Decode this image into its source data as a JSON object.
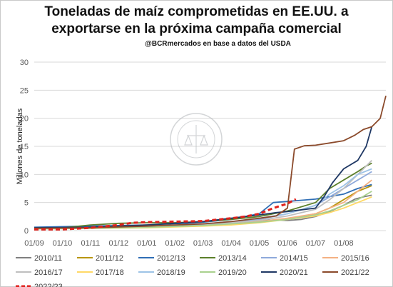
{
  "chart_data": {
    "type": "line",
    "title": "Toneladas de maíz comprometidas en EE.UU. a exportarse en la próxima campaña comercial",
    "title_line1": "Toneladas de maíz comprometidas en EE.UU. a",
    "title_line2": "exportarse en la próxima campaña comercial",
    "subtitle": "@BCRmercados en base a datos del USDA",
    "xlabel": "",
    "ylabel": "Millones de toneladas",
    "ylim": [
      0,
      30
    ],
    "yticks": [
      0,
      5,
      10,
      15,
      20,
      25,
      30
    ],
    "x_ticks": [
      "01/09",
      "01/10",
      "01/11",
      "01/12",
      "01/01",
      "01/02",
      "01/03",
      "01/04",
      "01/05",
      "01/06",
      "01/07",
      "01/08"
    ],
    "x_unit": "months since 01/09",
    "grid": true,
    "legend_position": "bottom",
    "watermark": "BOLSA DE COMERCIO DE ROSARIO",
    "series": [
      {
        "name": "2010/11",
        "color": "#7f7f7f",
        "dash": false,
        "points": [
          [
            0,
            0.4
          ],
          [
            2,
            0.5
          ],
          [
            4,
            0.7
          ],
          [
            6,
            1.0
          ],
          [
            7,
            1.3
          ],
          [
            8,
            1.8
          ],
          [
            8.6,
            1.9
          ],
          [
            9,
            1.8
          ],
          [
            9.5,
            2.0
          ],
          [
            10,
            2.5
          ],
          [
            10.5,
            3.4
          ],
          [
            11,
            4.5
          ],
          [
            11.4,
            5.6
          ],
          [
            11.7,
            6.0
          ],
          [
            12,
            6.3
          ]
        ]
      },
      {
        "name": "2011/12",
        "color": "#b8960c",
        "dash": false,
        "points": [
          [
            0,
            0.5
          ],
          [
            2,
            0.5
          ],
          [
            4,
            0.6
          ],
          [
            6,
            0.9
          ],
          [
            7,
            1.2
          ],
          [
            8,
            1.6
          ],
          [
            9,
            2.0
          ],
          [
            10,
            3.0
          ],
          [
            10.5,
            4.0
          ],
          [
            11,
            5.5
          ],
          [
            11.5,
            7.0
          ],
          [
            12,
            8.0
          ]
        ]
      },
      {
        "name": "2012/13",
        "color": "#2f6eb5",
        "dash": false,
        "points": [
          [
            0,
            0.6
          ],
          [
            2,
            0.8
          ],
          [
            4,
            1.0
          ],
          [
            5,
            1.2
          ],
          [
            6,
            1.5
          ],
          [
            7,
            2.0
          ],
          [
            7.5,
            2.5
          ],
          [
            8,
            3.0
          ],
          [
            8.5,
            5.0
          ],
          [
            9,
            5.2
          ],
          [
            10,
            5.6
          ],
          [
            11,
            6.5
          ],
          [
            11.5,
            7.5
          ],
          [
            12,
            8.2
          ]
        ]
      },
      {
        "name": "2013/14",
        "color": "#5b7f2a",
        "dash": false,
        "points": [
          [
            0,
            0.5
          ],
          [
            1,
            0.5
          ],
          [
            2,
            1.0
          ],
          [
            3,
            1.3
          ],
          [
            4,
            1.4
          ],
          [
            5,
            1.4
          ],
          [
            6,
            1.6
          ],
          [
            7,
            2.0
          ],
          [
            8,
            2.5
          ],
          [
            9,
            3.5
          ],
          [
            10,
            5.0
          ],
          [
            10.5,
            7.5
          ],
          [
            11,
            9.0
          ],
          [
            11.5,
            10.5
          ],
          [
            11.8,
            11.5
          ],
          [
            12,
            12.0
          ]
        ]
      },
      {
        "name": "2014/15",
        "color": "#8ea9db",
        "dash": false,
        "points": [
          [
            0,
            0.4
          ],
          [
            2,
            0.5
          ],
          [
            4,
            0.8
          ],
          [
            6,
            1.2
          ],
          [
            7,
            1.6
          ],
          [
            8,
            2.0
          ],
          [
            9,
            3.0
          ],
          [
            10,
            4.5
          ],
          [
            10.5,
            6.0
          ],
          [
            11,
            7.5
          ],
          [
            11.5,
            9.0
          ],
          [
            12,
            10.5
          ]
        ]
      },
      {
        "name": "2015/16",
        "color": "#f4b183",
        "dash": false,
        "points": [
          [
            0,
            0.3
          ],
          [
            2,
            0.4
          ],
          [
            4,
            0.6
          ],
          [
            6,
            0.9
          ],
          [
            7,
            1.2
          ],
          [
            8,
            1.6
          ],
          [
            9,
            2.2
          ],
          [
            10,
            3.0
          ],
          [
            10.5,
            4.0
          ],
          [
            11,
            5.0
          ],
          [
            11.5,
            7.0
          ],
          [
            12,
            9.0
          ]
        ]
      },
      {
        "name": "2016/17",
        "color": "#bfbfbf",
        "dash": false,
        "points": [
          [
            0,
            0.4
          ],
          [
            2,
            0.5
          ],
          [
            4,
            0.7
          ],
          [
            6,
            1.0
          ],
          [
            7,
            1.4
          ],
          [
            8,
            1.8
          ],
          [
            9,
            2.6
          ],
          [
            10,
            3.8
          ],
          [
            10.5,
            5.5
          ],
          [
            11,
            7.5
          ],
          [
            11.5,
            10.0
          ],
          [
            12,
            12.5
          ]
        ]
      },
      {
        "name": "2017/18",
        "color": "#ffd966",
        "dash": false,
        "points": [
          [
            0,
            0.3
          ],
          [
            2,
            0.4
          ],
          [
            4,
            0.5
          ],
          [
            6,
            0.8
          ],
          [
            7,
            1.0
          ],
          [
            8,
            1.4
          ],
          [
            9,
            2.0
          ],
          [
            10,
            2.6
          ],
          [
            10.5,
            3.2
          ],
          [
            11,
            4.0
          ],
          [
            11.5,
            5.0
          ],
          [
            12,
            6.0
          ]
        ]
      },
      {
        "name": "2018/19",
        "color": "#9dc3e6",
        "dash": false,
        "points": [
          [
            0,
            0.4
          ],
          [
            2,
            0.5
          ],
          [
            4,
            0.8
          ],
          [
            6,
            1.2
          ],
          [
            7,
            1.6
          ],
          [
            8,
            2.2
          ],
          [
            9,
            3.0
          ],
          [
            10,
            4.5
          ],
          [
            10.5,
            6.5
          ],
          [
            11,
            8.0
          ],
          [
            11.5,
            10.0
          ],
          [
            12,
            11.0
          ]
        ]
      },
      {
        "name": "2019/20",
        "color": "#a9d18e",
        "dash": false,
        "points": [
          [
            0,
            0.3
          ],
          [
            2,
            0.4
          ],
          [
            4,
            0.6
          ],
          [
            6,
            0.9
          ],
          [
            7,
            1.2
          ],
          [
            8,
            1.5
          ],
          [
            9,
            2.0
          ],
          [
            10,
            2.8
          ],
          [
            10.5,
            3.5
          ],
          [
            11,
            4.5
          ],
          [
            11.5,
            5.5
          ],
          [
            12,
            7.0
          ]
        ]
      },
      {
        "name": "2020/21",
        "color": "#1f3864",
        "dash": false,
        "points": [
          [
            0,
            0.5
          ],
          [
            2,
            0.6
          ],
          [
            4,
            1.0
          ],
          [
            5,
            1.3
          ],
          [
            6,
            1.6
          ],
          [
            7,
            2.2
          ],
          [
            8,
            2.8
          ],
          [
            8.6,
            3.2
          ],
          [
            9,
            3.4
          ],
          [
            10,
            4.0
          ],
          [
            10.3,
            6.0
          ],
          [
            10.6,
            8.5
          ],
          [
            11,
            11.0
          ],
          [
            11.5,
            12.5
          ],
          [
            11.8,
            15.0
          ],
          [
            12,
            18.5
          ]
        ]
      },
      {
        "name": "2021/22",
        "color": "#8b4a2b",
        "dash": false,
        "points": [
          [
            0,
            0.4
          ],
          [
            2,
            0.5
          ],
          [
            4,
            0.8
          ],
          [
            6,
            1.2
          ],
          [
            7,
            1.6
          ],
          [
            8,
            2.2
          ],
          [
            8.6,
            2.6
          ],
          [
            9,
            4.0
          ],
          [
            9.25,
            14.5
          ],
          [
            9.6,
            15.1
          ],
          [
            10,
            15.2
          ],
          [
            10.5,
            15.6
          ],
          [
            11,
            16.0
          ],
          [
            11.4,
            17.0
          ],
          [
            11.7,
            18.0
          ],
          [
            12,
            18.5
          ],
          [
            12.3,
            20.0
          ],
          [
            12.5,
            24.0
          ]
        ]
      },
      {
        "name": "2022/23",
        "color": "#e0211c",
        "dash": true,
        "points": [
          [
            0,
            0.2
          ],
          [
            1,
            0.2
          ],
          [
            2,
            0.5
          ],
          [
            3,
            1.0
          ],
          [
            3.5,
            1.4
          ],
          [
            4,
            1.5
          ],
          [
            5,
            1.6
          ],
          [
            6,
            1.7
          ],
          [
            7,
            2.2
          ],
          [
            7.5,
            2.5
          ],
          [
            8,
            3.0
          ],
          [
            8.5,
            4.0
          ],
          [
            9,
            4.8
          ],
          [
            9.3,
            5.6
          ]
        ]
      }
    ]
  }
}
